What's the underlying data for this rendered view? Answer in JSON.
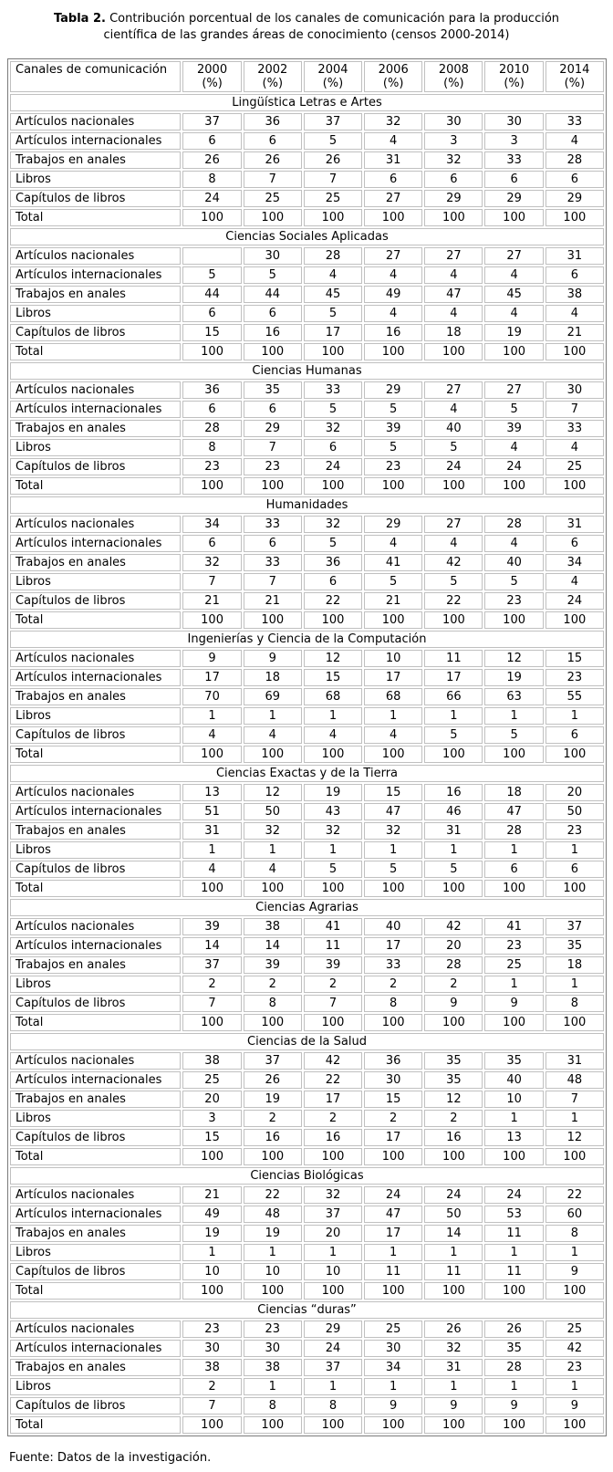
{
  "title": {
    "label": "Tabla 2.",
    "text": " Contribución porcentual de los canales de comunicación para la producción científica de las grandes áreas de conocimiento (censos 2000-2014)"
  },
  "table": {
    "header": {
      "channel": "Canales de comunicación",
      "years": [
        "2000",
        "2002",
        "2004",
        "2006",
        "2008",
        "2010",
        "2014"
      ],
      "unit": "(%)"
    },
    "sections": [
      {
        "name": "Lingüística Letras e Artes",
        "rows": [
          {
            "label": "Artículos nacionales",
            "values": [
              "37",
              "36",
              "37",
              "32",
              "30",
              "30",
              "33"
            ]
          },
          {
            "label": "Artículos internacionales",
            "values": [
              "6",
              "6",
              "5",
              "4",
              "3",
              "3",
              "4"
            ]
          },
          {
            "label": "Trabajos en anales",
            "values": [
              "26",
              "26",
              "26",
              "31",
              "32",
              "33",
              "28"
            ]
          },
          {
            "label": "Libros",
            "values": [
              "8",
              "7",
              "7",
              "6",
              "6",
              "6",
              "6"
            ]
          },
          {
            "label": "Capítulos de libros",
            "values": [
              "24",
              "25",
              "25",
              "27",
              "29",
              "29",
              "29"
            ]
          },
          {
            "label": "Total",
            "values": [
              "100",
              "100",
              "100",
              "100",
              "100",
              "100",
              "100"
            ]
          }
        ]
      },
      {
        "name": "Ciencias Sociales Aplicadas",
        "rows": [
          {
            "label": "Artículos nacionales",
            "values": [
              "",
              "30",
              "28",
              "27",
              "27",
              "27",
              "31"
            ]
          },
          {
            "label": "Artículos internacionales",
            "values": [
              "5",
              "5",
              "4",
              "4",
              "4",
              "4",
              "6"
            ]
          },
          {
            "label": "Trabajos en anales",
            "values": [
              "44",
              "44",
              "45",
              "49",
              "47",
              "45",
              "38"
            ]
          },
          {
            "label": "Libros",
            "values": [
              "6",
              "6",
              "5",
              "4",
              "4",
              "4",
              "4"
            ]
          },
          {
            "label": "Capítulos de libros",
            "values": [
              "15",
              "16",
              "17",
              "16",
              "18",
              "19",
              "21"
            ]
          },
          {
            "label": "Total",
            "values": [
              "100",
              "100",
              "100",
              "100",
              "100",
              "100",
              "100"
            ]
          }
        ]
      },
      {
        "name": "Ciencias Humanas",
        "rows": [
          {
            "label": "Artículos nacionales",
            "values": [
              "36",
              "35",
              "33",
              "29",
              "27",
              "27",
              "30"
            ]
          },
          {
            "label": "Artículos internacionales",
            "values": [
              "6",
              "6",
              "5",
              "5",
              "4",
              "5",
              "7"
            ]
          },
          {
            "label": "Trabajos en anales",
            "values": [
              "28",
              "29",
              "32",
              "39",
              "40",
              "39",
              "33"
            ]
          },
          {
            "label": "Libros",
            "values": [
              "8",
              "7",
              "6",
              "5",
              "5",
              "4",
              "4"
            ]
          },
          {
            "label": "Capítulos de libros",
            "values": [
              "23",
              "23",
              "24",
              "23",
              "24",
              "24",
              "25"
            ]
          },
          {
            "label": "Total",
            "values": [
              "100",
              "100",
              "100",
              "100",
              "100",
              "100",
              "100"
            ]
          }
        ]
      },
      {
        "name": "Humanidades",
        "rows": [
          {
            "label": "Artículos nacionales",
            "values": [
              "34",
              "33",
              "32",
              "29",
              "27",
              "28",
              "31"
            ]
          },
          {
            "label": "Artículos internacionales",
            "values": [
              "6",
              "6",
              "5",
              "4",
              "4",
              "4",
              "6"
            ]
          },
          {
            "label": "Trabajos en anales",
            "values": [
              "32",
              "33",
              "36",
              "41",
              "42",
              "40",
              "34"
            ]
          },
          {
            "label": "Libros",
            "values": [
              "7",
              "7",
              "6",
              "5",
              "5",
              "5",
              "4"
            ]
          },
          {
            "label": "Capítulos de libros",
            "values": [
              "21",
              "21",
              "22",
              "21",
              "22",
              "23",
              "24"
            ]
          },
          {
            "label": "Total",
            "values": [
              "100",
              "100",
              "100",
              "100",
              "100",
              "100",
              "100"
            ]
          }
        ]
      },
      {
        "name": "Ingenierías y Ciencia de la Computación",
        "rows": [
          {
            "label": "Artículos nacionales",
            "values": [
              "9",
              "9",
              "12",
              "10",
              "11",
              "12",
              "15"
            ]
          },
          {
            "label": "Artículos internacionales",
            "values": [
              "17",
              "18",
              "15",
              "17",
              "17",
              "19",
              "23"
            ]
          },
          {
            "label": "Trabajos en anales",
            "values": [
              "70",
              "69",
              "68",
              "68",
              "66",
              "63",
              "55"
            ]
          },
          {
            "label": "Libros",
            "values": [
              "1",
              "1",
              "1",
              "1",
              "1",
              "1",
              "1"
            ]
          },
          {
            "label": "Capítulos de libros",
            "values": [
              "4",
              "4",
              "4",
              "4",
              "5",
              "5",
              "6"
            ]
          },
          {
            "label": "Total",
            "values": [
              "100",
              "100",
              "100",
              "100",
              "100",
              "100",
              "100"
            ]
          }
        ]
      },
      {
        "name": "Ciencias Exactas y de la Tierra",
        "rows": [
          {
            "label": "Artículos nacionales",
            "values": [
              "13",
              "12",
              "19",
              "15",
              "16",
              "18",
              "20"
            ]
          },
          {
            "label": "Artículos internacionales",
            "values": [
              "51",
              "50",
              "43",
              "47",
              "46",
              "47",
              "50"
            ]
          },
          {
            "label": "Trabajos en anales",
            "values": [
              "31",
              "32",
              "32",
              "32",
              "31",
              "28",
              "23"
            ]
          },
          {
            "label": "Libros",
            "values": [
              "1",
              "1",
              "1",
              "1",
              "1",
              "1",
              "1"
            ]
          },
          {
            "label": "Capítulos de libros",
            "values": [
              "4",
              "4",
              "5",
              "5",
              "5",
              "6",
              "6"
            ]
          },
          {
            "label": "Total",
            "values": [
              "100",
              "100",
              "100",
              "100",
              "100",
              "100",
              "100"
            ]
          }
        ]
      },
      {
        "name": "Ciencias Agrarias",
        "rows": [
          {
            "label": "Artículos nacionales",
            "values": [
              "39",
              "38",
              "41",
              "40",
              "42",
              "41",
              "37"
            ]
          },
          {
            "label": "Artículos internacionales",
            "values": [
              "14",
              "14",
              "11",
              "17",
              "20",
              "23",
              "35"
            ]
          },
          {
            "label": "Trabajos en anales",
            "values": [
              "37",
              "39",
              "39",
              "33",
              "28",
              "25",
              "18"
            ]
          },
          {
            "label": "Libros",
            "values": [
              "2",
              "2",
              "2",
              "2",
              "2",
              "1",
              "1"
            ]
          },
          {
            "label": "Capítulos de libros",
            "values": [
              "7",
              "8",
              "7",
              "8",
              "9",
              "9",
              "8"
            ]
          },
          {
            "label": "Total",
            "values": [
              "100",
              "100",
              "100",
              "100",
              "100",
              "100",
              "100"
            ]
          }
        ]
      },
      {
        "name": "Ciencias de la Salud",
        "rows": [
          {
            "label": "Artículos nacionales",
            "values": [
              "38",
              "37",
              "42",
              "36",
              "35",
              "35",
              "31"
            ]
          },
          {
            "label": "Artículos internacionales",
            "values": [
              "25",
              "26",
              "22",
              "30",
              "35",
              "40",
              "48"
            ]
          },
          {
            "label": "Trabajos en anales",
            "values": [
              "20",
              "19",
              "17",
              "15",
              "12",
              "10",
              "7"
            ]
          },
          {
            "label": "Libros",
            "values": [
              "3",
              "2",
              "2",
              "2",
              "2",
              "1",
              "1"
            ]
          },
          {
            "label": "Capítulos de libros",
            "values": [
              "15",
              "16",
              "16",
              "17",
              "16",
              "13",
              "12"
            ]
          },
          {
            "label": "Total",
            "values": [
              "100",
              "100",
              "100",
              "100",
              "100",
              "100",
              "100"
            ]
          }
        ]
      },
      {
        "name": "Ciencias Biológicas",
        "rows": [
          {
            "label": "Artículos nacionales",
            "values": [
              "21",
              "22",
              "32",
              "24",
              "24",
              "24",
              "22"
            ]
          },
          {
            "label": "Artículos internacionales",
            "values": [
              "49",
              "48",
              "37",
              "47",
              "50",
              "53",
              "60"
            ]
          },
          {
            "label": "Trabajos en anales",
            "values": [
              "19",
              "19",
              "20",
              "17",
              "14",
              "11",
              "8"
            ]
          },
          {
            "label": "Libros",
            "values": [
              "1",
              "1",
              "1",
              "1",
              "1",
              "1",
              "1"
            ]
          },
          {
            "label": "Capítulos de libros",
            "values": [
              "10",
              "10",
              "10",
              "11",
              "11",
              "11",
              "9"
            ]
          },
          {
            "label": "Total",
            "values": [
              "100",
              "100",
              "100",
              "100",
              "100",
              "100",
              "100"
            ]
          }
        ]
      },
      {
        "name": "Ciencias “duras”",
        "rows": [
          {
            "label": "Artículos nacionales",
            "values": [
              "23",
              "23",
              "29",
              "25",
              "26",
              "26",
              "25"
            ]
          },
          {
            "label": "Artículos internacionales",
            "values": [
              "30",
              "30",
              "24",
              "30",
              "32",
              "35",
              "42"
            ]
          },
          {
            "label": "Trabajos en anales",
            "values": [
              "38",
              "38",
              "37",
              "34",
              "31",
              "28",
              "23"
            ]
          },
          {
            "label": "Libros",
            "values": [
              "2",
              "1",
              "1",
              "1",
              "1",
              "1",
              "1"
            ]
          },
          {
            "label": "Capítulos de libros",
            "values": [
              "7",
              "8",
              "8",
              "9",
              "9",
              "9",
              "9"
            ]
          },
          {
            "label": "Total",
            "values": [
              "100",
              "100",
              "100",
              "100",
              "100",
              "100",
              "100"
            ]
          }
        ]
      }
    ]
  },
  "footer": {
    "text": "Fuente: Datos de la investigación."
  },
  "colors": {
    "outer_border": "#7b7b7b",
    "cell_border": "#c0c0c0",
    "text": "#000000",
    "background": "#ffffff"
  }
}
